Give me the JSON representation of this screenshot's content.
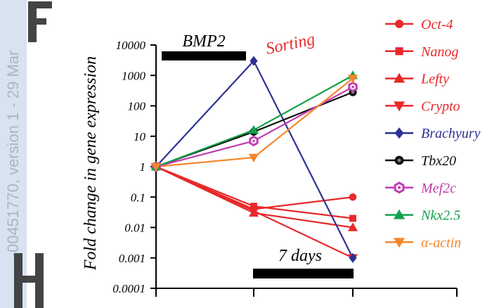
{
  "watermark": {
    "text": "-00451770, version 1 - 29 Mar",
    "color": "#a9b5c6",
    "strip_color": "#d9e2f1"
  },
  "chart_data": {
    "type": "line",
    "x": [
      0,
      1,
      2
    ],
    "y_scale": "log",
    "ylim": [
      0.0001,
      10000
    ],
    "ylabel": "Fold change in   gene  expression",
    "y_tick_labels": [
      "0.0001",
      "0.001",
      "0.01",
      "0.1",
      "1",
      "10",
      "100",
      "1000",
      "10000"
    ],
    "annotations": {
      "bmp2": "BMP2",
      "sorting": "Sorting",
      "days": "7 days"
    },
    "series": [
      {
        "name": "Oct-4",
        "color": "#e8282a",
        "marker": "circle",
        "values": [
          1,
          0.04,
          0.1
        ]
      },
      {
        "name": "Nanog",
        "color": "#e8282a",
        "marker": "square",
        "values": [
          1,
          0.05,
          0.02
        ]
      },
      {
        "name": "Lefty",
        "color": "#e8282a",
        "marker": "triangle-up",
        "values": [
          1,
          0.03,
          0.01
        ]
      },
      {
        "name": "Crypto",
        "color": "#e8282a",
        "marker": "triangle-down",
        "values": [
          1,
          0.035,
          0.001
        ]
      },
      {
        "name": "Brachyury",
        "color": "#2e3192",
        "marker": "diamond",
        "values": [
          1,
          3000,
          0.001
        ]
      },
      {
        "name": "Tbx20",
        "color": "#111111",
        "marker": "circle-dot",
        "values": [
          1,
          14,
          280
        ]
      },
      {
        "name": "Mef2c",
        "color": "#c03cb0",
        "marker": "hexagon-open",
        "values": [
          1,
          7,
          420
        ]
      },
      {
        "name": "Nkx2.5",
        "color": "#13a04a",
        "marker": "triangle-up",
        "values": [
          1,
          16,
          1000
        ]
      },
      {
        "name": "α-actin",
        "color": "#f5862a",
        "marker": "triangle-down",
        "values": [
          1,
          2,
          800
        ]
      }
    ]
  }
}
